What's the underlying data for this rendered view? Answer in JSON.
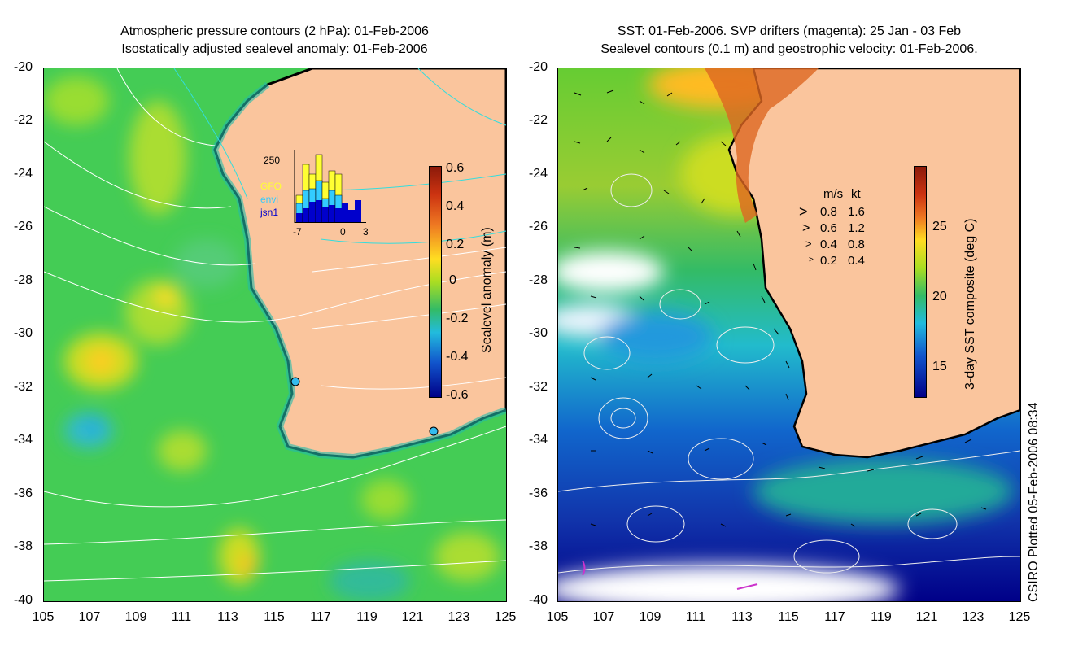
{
  "left_panel": {
    "title_line1": "Atmospheric pressure contours (2 hPa): 01-Feb-2006",
    "title_line2": "Isostatically adjusted sealevel anomaly: 01-Feb-2006",
    "colorbar_label": "Sealevel anomaly (m)",
    "colorbar_ticks": [
      "0.6",
      "0.4",
      "0.2",
      "0",
      "-0.2",
      "-0.4",
      "-0.6"
    ],
    "inset": {
      "ymax_label": "250",
      "legend": [
        {
          "name": "GFO",
          "color": "#ffff33"
        },
        {
          "name": "envi",
          "color": "#33ccff"
        },
        {
          "name": "jsn1",
          "color": "#0000cc"
        }
      ],
      "x_ticks": [
        "-7",
        "0",
        "3"
      ]
    },
    "colors": {
      "land": "#fac59d",
      "ocean": "#33cc66",
      "coast": "#000000"
    }
  },
  "right_panel": {
    "title_line1": "SST: 01-Feb-2006. SVP drifters (magenta): 25 Jan - 03 Feb",
    "title_line2": "Sealevel contours (0.1 m) and geostrophic velocity: 01-Feb-2006.",
    "colorbar_label": "3-day SST composite (deg C)",
    "colorbar_ticks": [
      "25",
      "20",
      "15"
    ],
    "velocity_legend": {
      "header_ms": "m/s",
      "header_kt": "kt",
      "rows": [
        {
          "ms": "0.8",
          "kt": "1.6"
        },
        {
          "ms": "0.6",
          "kt": "1.2"
        },
        {
          "ms": "0.4",
          "kt": "0.8"
        },
        {
          "ms": "0.2",
          "kt": "0.4"
        }
      ]
    }
  },
  "axes": {
    "y_ticks": [
      "-20",
      "-22",
      "-24",
      "-26",
      "-28",
      "-30",
      "-32",
      "-34",
      "-36",
      "-38",
      "-40"
    ],
    "x_ticks": [
      "105",
      "107",
      "109",
      "111",
      "113",
      "115",
      "117",
      "119",
      "121",
      "123",
      "125"
    ]
  },
  "footer_note": "CSIRO Plotted 05-Feb-2006 08:34"
}
